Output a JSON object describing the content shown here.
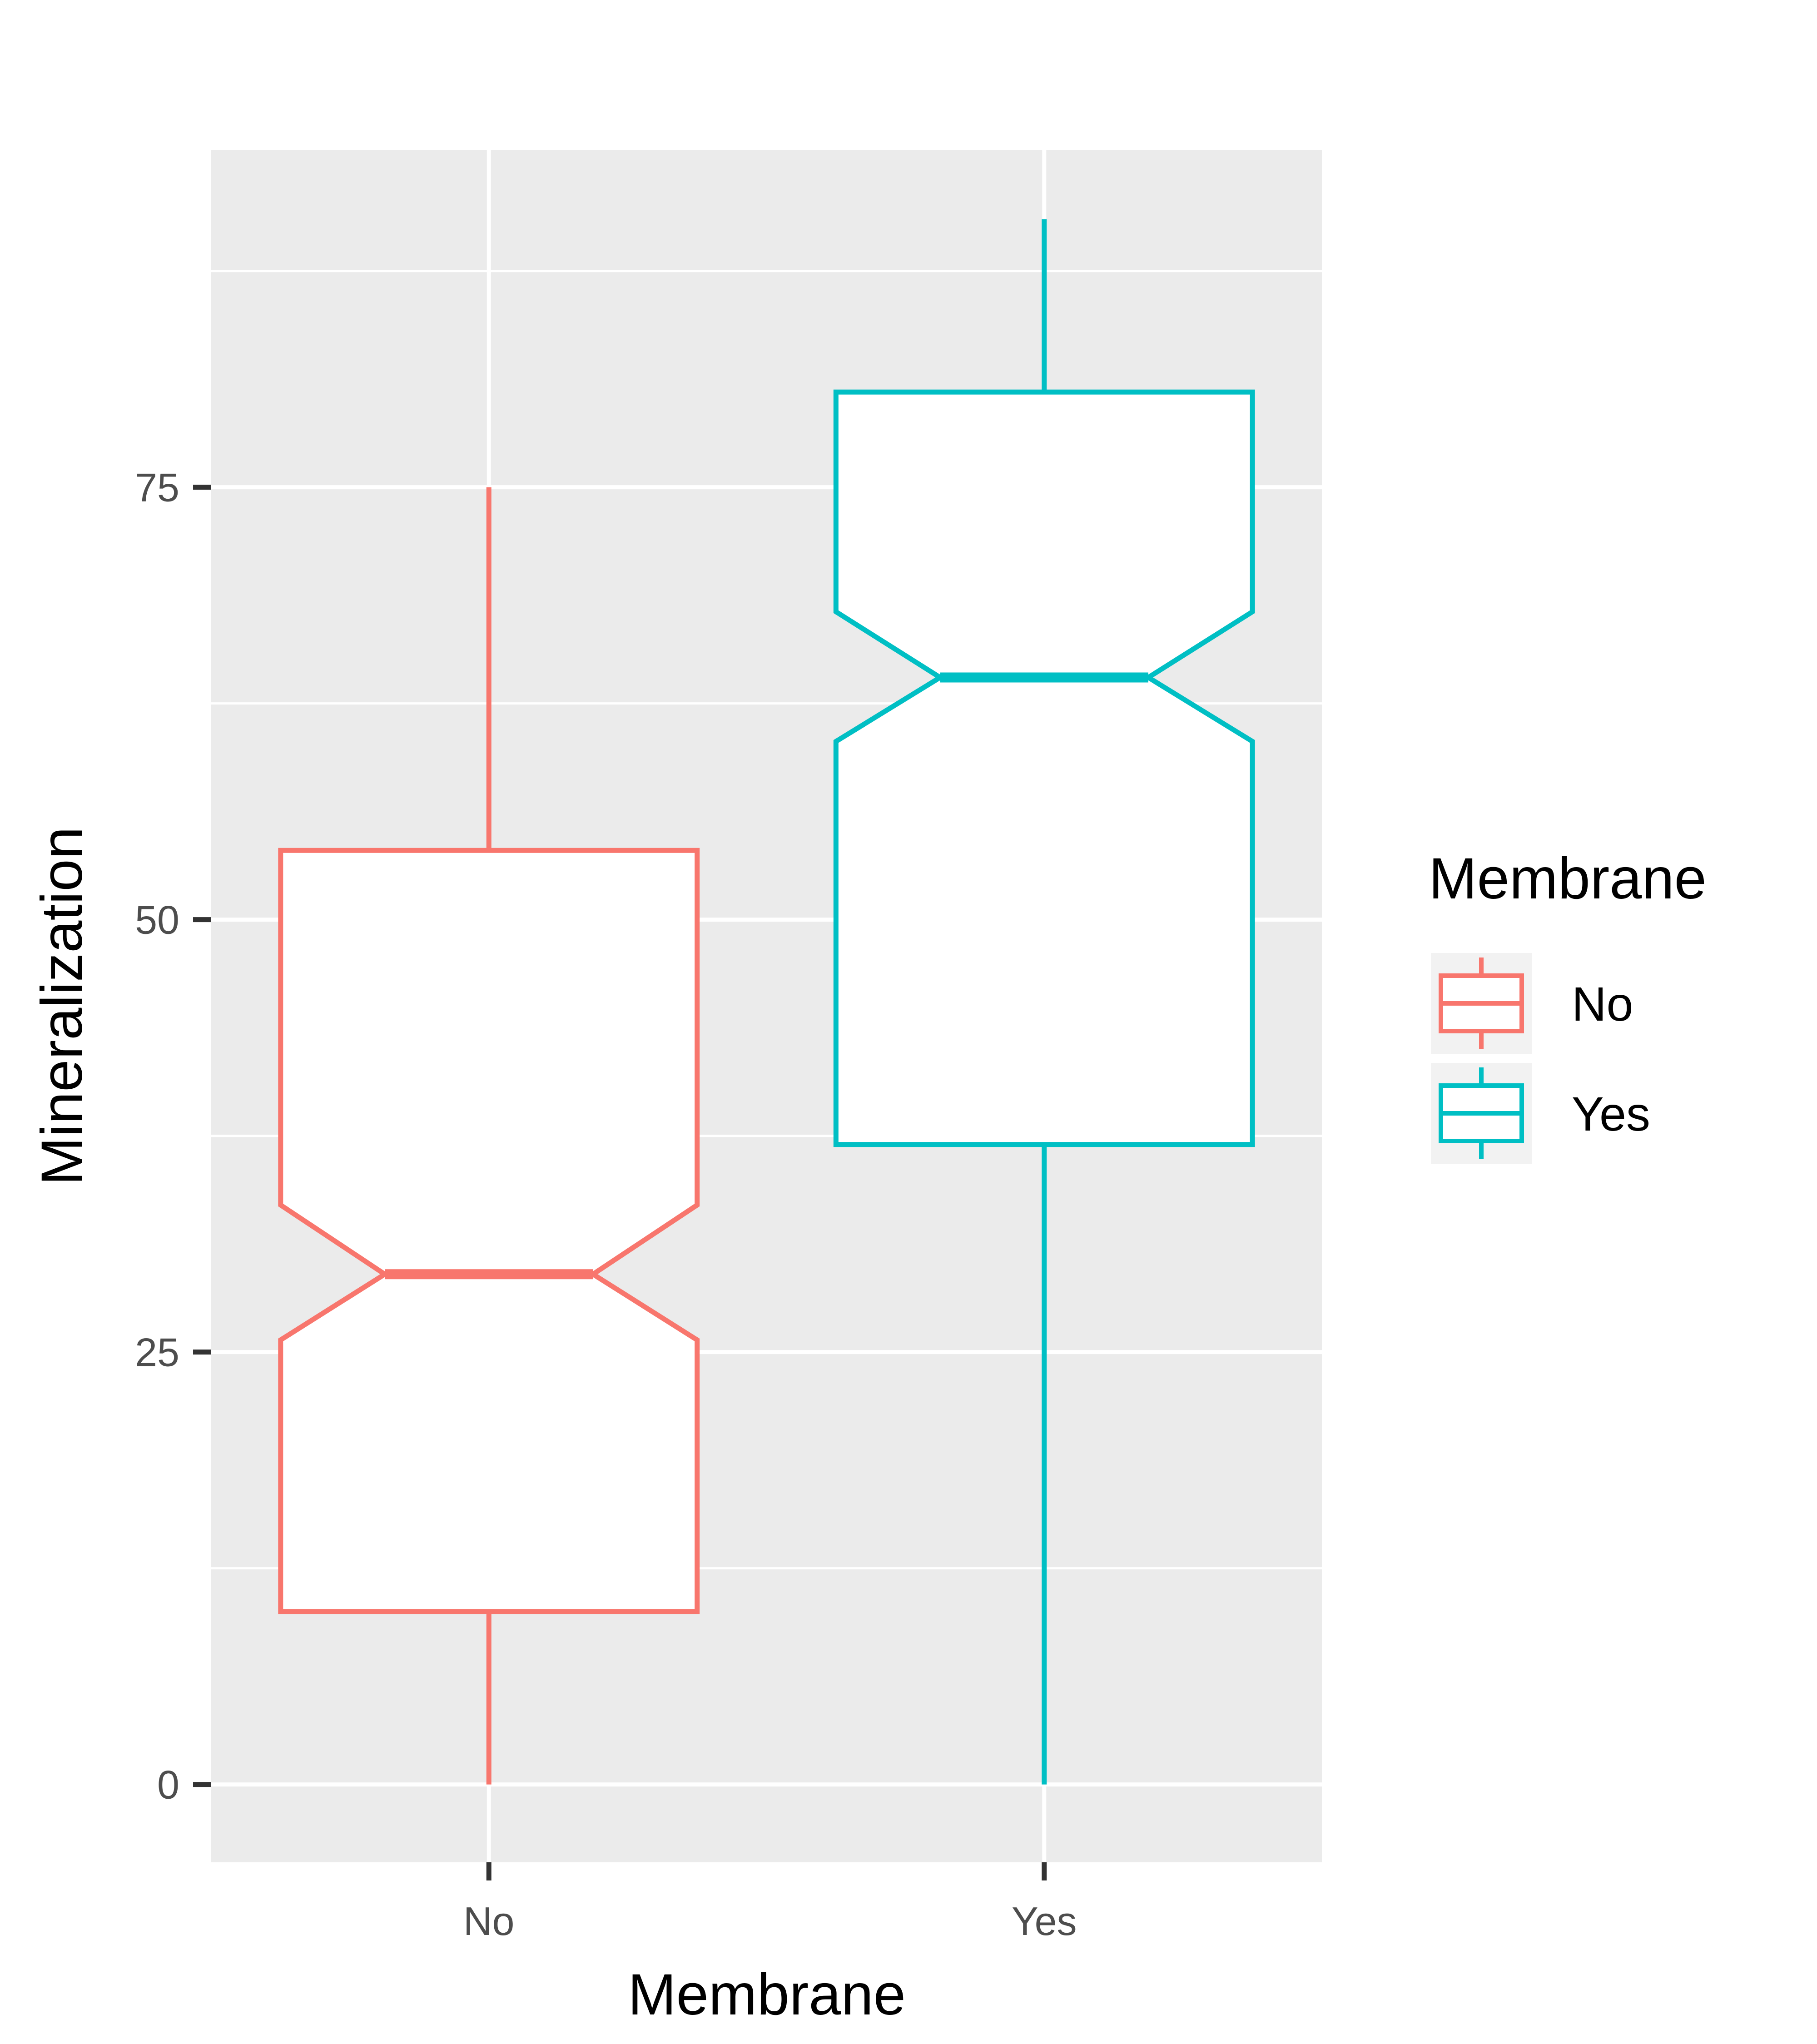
{
  "chart_data": {
    "type": "boxplot",
    "notched": true,
    "xlabel": "Membrane",
    "ylabel": "Mineralization",
    "categories": [
      "No",
      "Yes"
    ],
    "ylim": [
      -4.5,
      94.5
    ],
    "yticks": [
      0,
      25,
      50,
      75
    ],
    "grid": true,
    "series": [
      {
        "name": "No",
        "color": "#F8766D",
        "stats": {
          "min": 0,
          "q1": 10,
          "median": 29.5,
          "q3": 54,
          "max": 75,
          "notch_low": 25.7,
          "notch_high": 33.5
        }
      },
      {
        "name": "Yes",
        "color": "#00BFC4",
        "stats": {
          "min": 0,
          "q1": 37,
          "median": 64,
          "q3": 80.5,
          "max": 90.5,
          "notch_low": 60.3,
          "notch_high": 67.8
        }
      }
    ],
    "legend": {
      "title": "Membrane",
      "position": "right",
      "entries": [
        "No",
        "Yes"
      ]
    }
  }
}
